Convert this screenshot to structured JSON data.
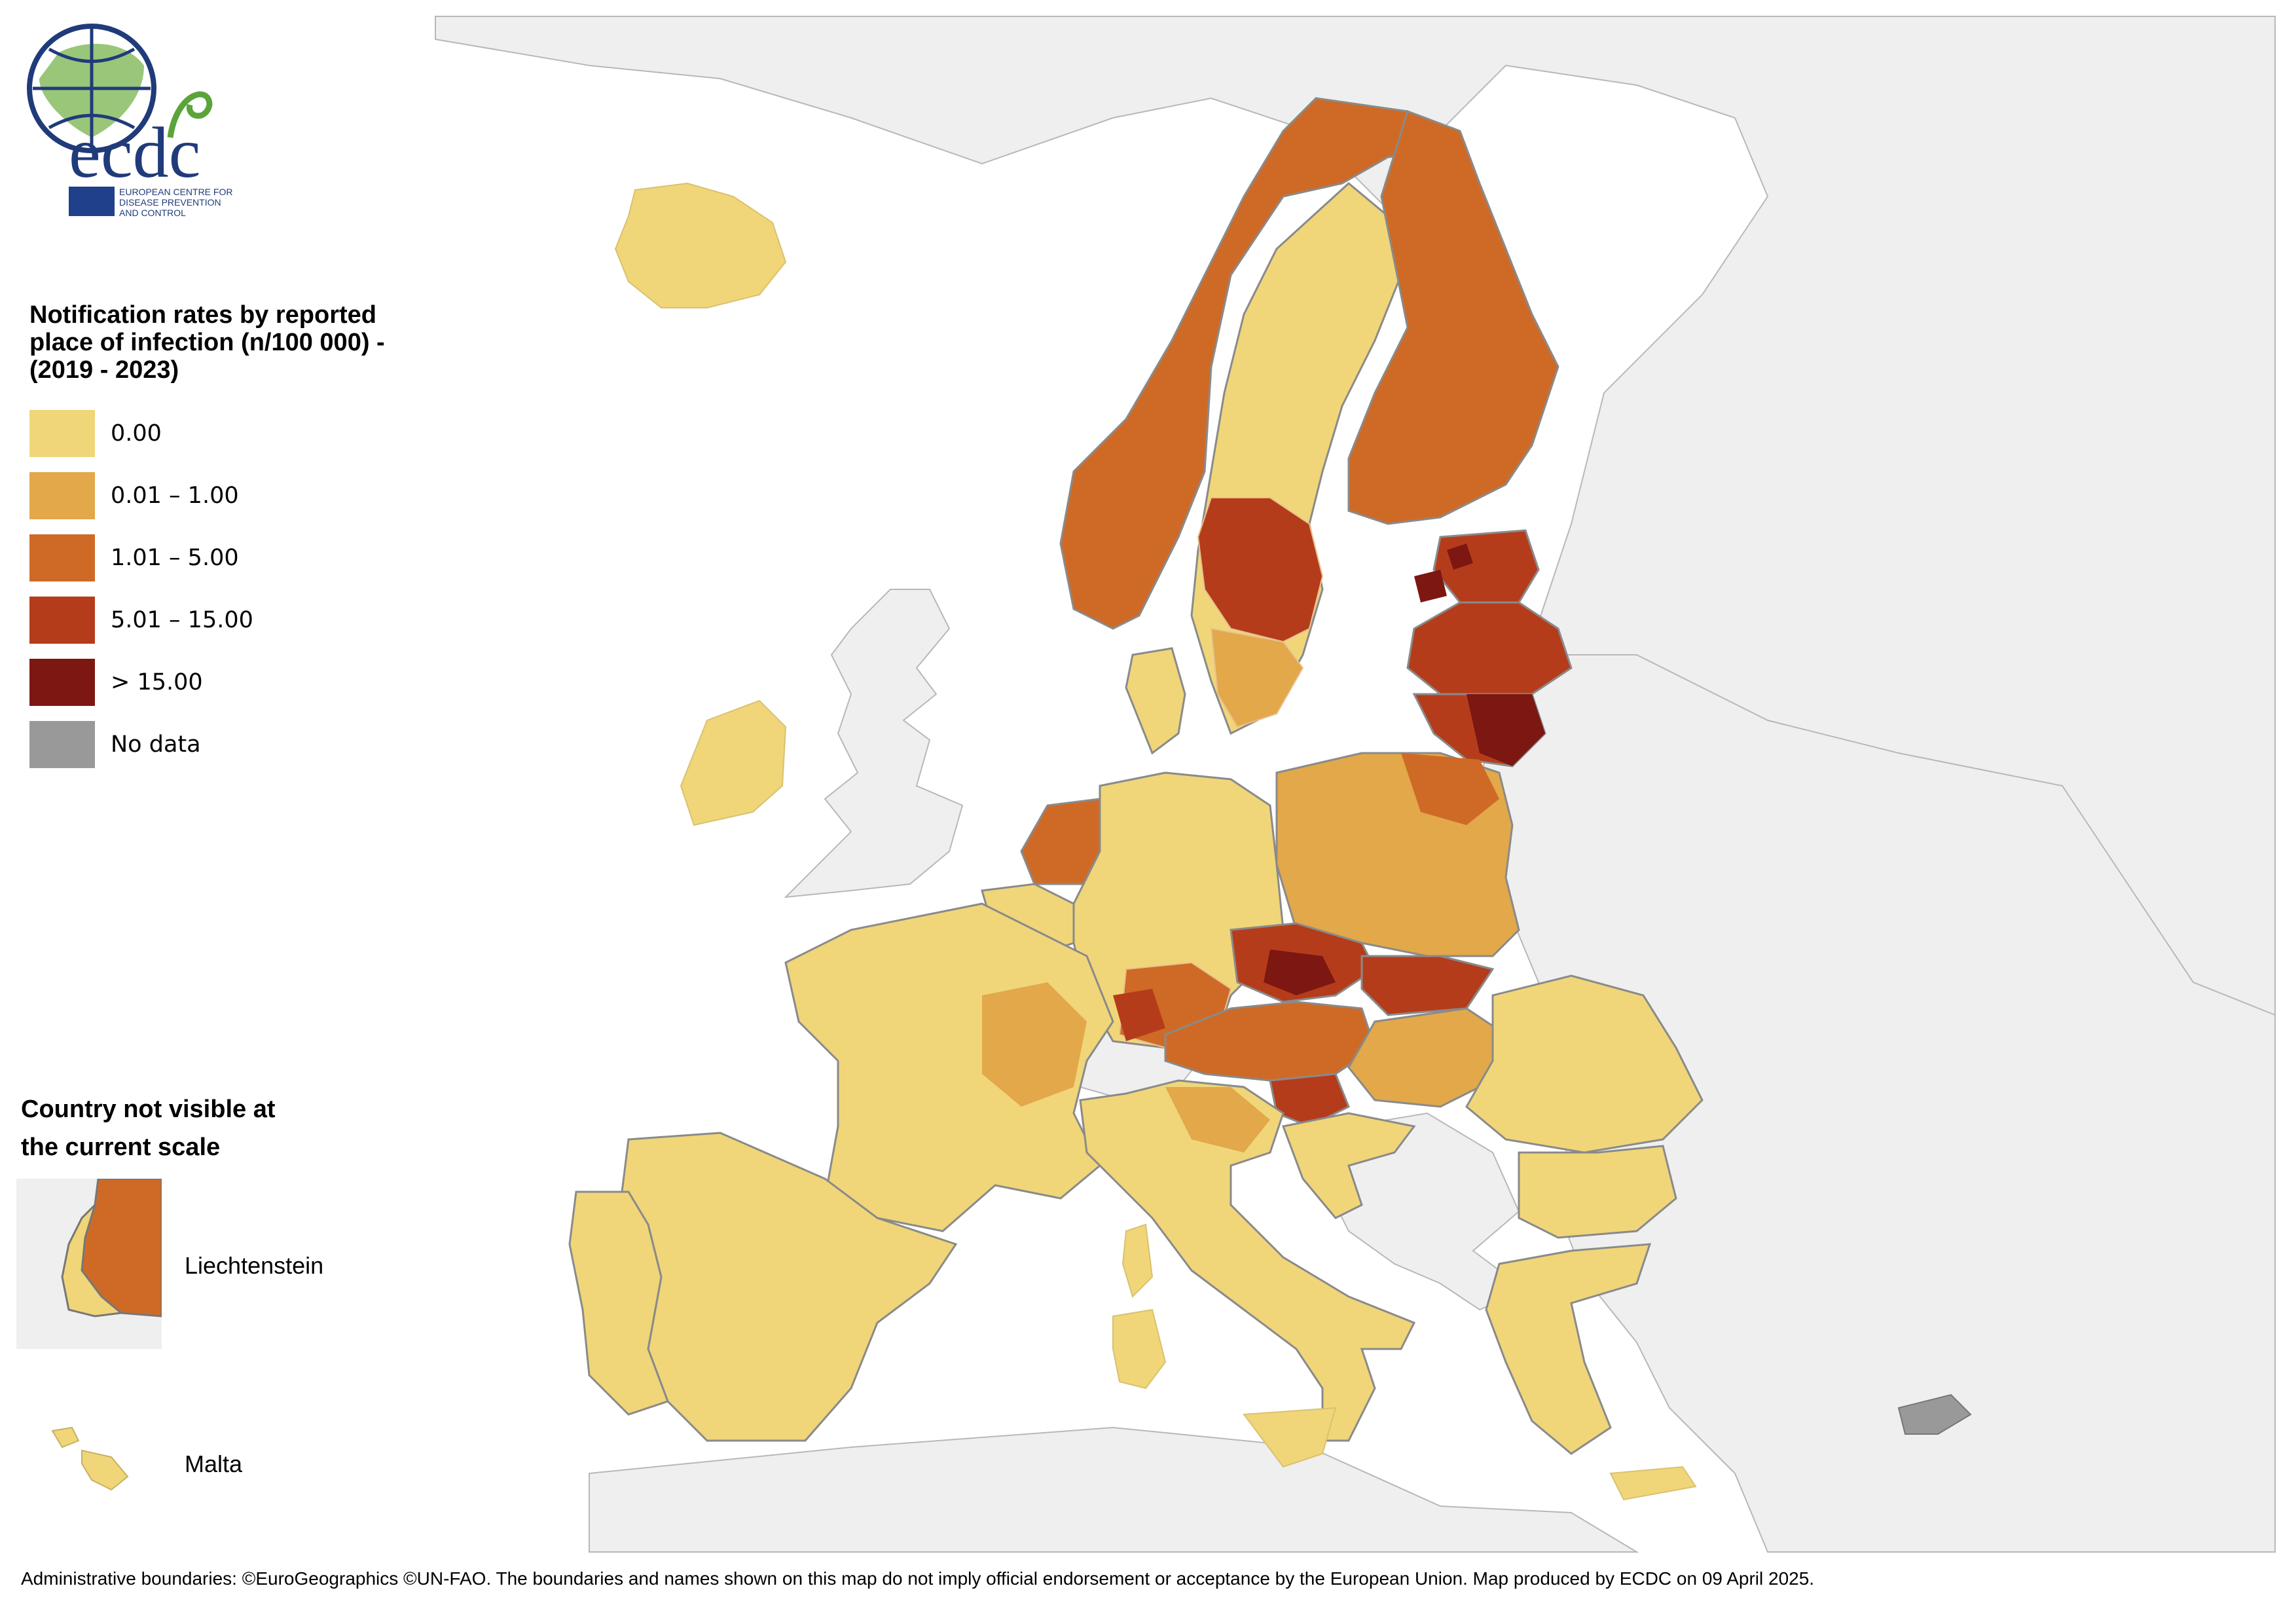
{
  "logo": {
    "wordmark": "ecdc",
    "subtitle_lines": [
      "EUROPEAN CENTRE FOR",
      "DISEASE PREVENTION",
      "AND CONTROL"
    ]
  },
  "legend": {
    "title_lines": [
      "Notification rates by reported",
      "place of infection (n/100 000) -",
      "(2019 - 2023)"
    ],
    "items": [
      {
        "label": "0.00",
        "color": "#f0d679"
      },
      {
        "label": "0.01 – 1.00",
        "color": "#e2a84a"
      },
      {
        "label": "1.01 – 5.00",
        "color": "#cf6a26"
      },
      {
        "label": "5.01 – 15.00",
        "color": "#b53c1b"
      },
      {
        "label": "> 15.00",
        "color": "#7c1712"
      },
      {
        "label": "No data",
        "color": "#999999"
      }
    ]
  },
  "inset": {
    "title_lines": [
      "Country not visible at",
      "the current scale"
    ],
    "liechtenstein_label": "Liechtenstein",
    "malta_label": "Malta"
  },
  "map_colors": {
    "sea": "#ffffff",
    "non_eu_land": "#efefef",
    "border": "#8a8a8a",
    "region_line": "#f4e4b0"
  },
  "footer": "Administrative boundaries: ©EuroGeographics ©UN-FAO. The boundaries and names shown on this map do not imply official endorsement or acceptance by the European Union. Map produced by ECDC on 09 April 2025."
}
